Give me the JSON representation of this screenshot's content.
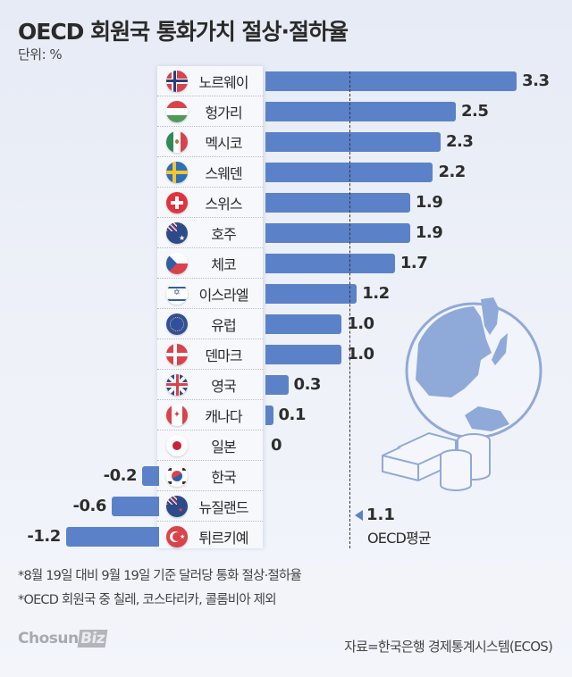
{
  "header": {
    "title": "OECD 회원국 통화가치 절상·절하율",
    "unit": "단위: %"
  },
  "chart_data": {
    "type": "bar",
    "orientation": "horizontal",
    "title": "OECD 회원국 통화가치 절상·절하율",
    "unit": "%",
    "categories": [
      "노르웨이",
      "헝가리",
      "멕시코",
      "스웨덴",
      "스위스",
      "호주",
      "체코",
      "이스라엘",
      "유럽",
      "덴마크",
      "영국",
      "캐나다",
      "일본",
      "한국",
      "뉴질랜드",
      "튀르키예"
    ],
    "values": [
      3.3,
      2.5,
      2.3,
      2.2,
      1.9,
      1.9,
      1.7,
      1.2,
      1.0,
      1.0,
      0.3,
      0.1,
      0,
      -0.2,
      -0.6,
      -1.2
    ],
    "value_labels": [
      "3.3",
      "2.5",
      "2.3",
      "2.2",
      "1.9",
      "1.9",
      "1.7",
      "1.2",
      "1.0",
      "1.0",
      "0.3",
      "0.1",
      "0",
      "-0.2",
      "-0.6",
      "-1.2"
    ],
    "reference_line": {
      "value": 1.1,
      "label": "1.1",
      "name": "OECD평균",
      "style": "dashed"
    },
    "bar_color": "#5b82c8",
    "grid": false,
    "legend": null
  },
  "rows": [
    {
      "country": "노르웨이",
      "flag": "norway-flag-icon",
      "value": 3.3,
      "label": "3.3"
    },
    {
      "country": "헝가리",
      "flag": "hungary-flag-icon",
      "value": 2.5,
      "label": "2.5"
    },
    {
      "country": "멕시코",
      "flag": "mexico-flag-icon",
      "value": 2.3,
      "label": "2.3"
    },
    {
      "country": "스웨덴",
      "flag": "sweden-flag-icon",
      "value": 2.2,
      "label": "2.2"
    },
    {
      "country": "스위스",
      "flag": "switzerland-flag-icon",
      "value": 1.9,
      "label": "1.9"
    },
    {
      "country": "호주",
      "flag": "australia-flag-icon",
      "value": 1.9,
      "label": "1.9"
    },
    {
      "country": "체코",
      "flag": "czech-flag-icon",
      "value": 1.7,
      "label": "1.7"
    },
    {
      "country": "이스라엘",
      "flag": "israel-flag-icon",
      "value": 1.2,
      "label": "1.2"
    },
    {
      "country": "유럽",
      "flag": "eu-flag-icon",
      "value": 1.0,
      "label": "1.0"
    },
    {
      "country": "덴마크",
      "flag": "denmark-flag-icon",
      "value": 1.0,
      "label": "1.0"
    },
    {
      "country": "영국",
      "flag": "uk-flag-icon",
      "value": 0.3,
      "label": "0.3"
    },
    {
      "country": "캐나다",
      "flag": "canada-flag-icon",
      "value": 0.1,
      "label": "0.1"
    },
    {
      "country": "일본",
      "flag": "japan-flag-icon",
      "value": 0,
      "label": "0"
    },
    {
      "country": "한국",
      "flag": "korea-flag-icon",
      "value": -0.2,
      "label": "-0.2"
    },
    {
      "country": "뉴질랜드",
      "flag": "newzealand-flag-icon",
      "value": -0.6,
      "label": "-0.6"
    },
    {
      "country": "튀르키예",
      "flag": "turkey-flag-icon",
      "value": -1.2,
      "label": "-1.2"
    }
  ],
  "average": {
    "value": "1.1",
    "label": "OECD평균"
  },
  "notes": [
    "*8월 19일 대비 9월 19일 기준 달러당 통화 절상·절하율",
    "*OECD 회원국 중 칠레, 코스타리카, 콜롬비아 제외"
  ],
  "footer": {
    "logo_text": "Chosun",
    "logo_badge": "Biz",
    "source": "자료=한국은행 경제통계시스템(ECOS)"
  },
  "colors": {
    "bar": "#5b82c8",
    "globe": "#8fa9d8",
    "background": "#e9edf6"
  }
}
